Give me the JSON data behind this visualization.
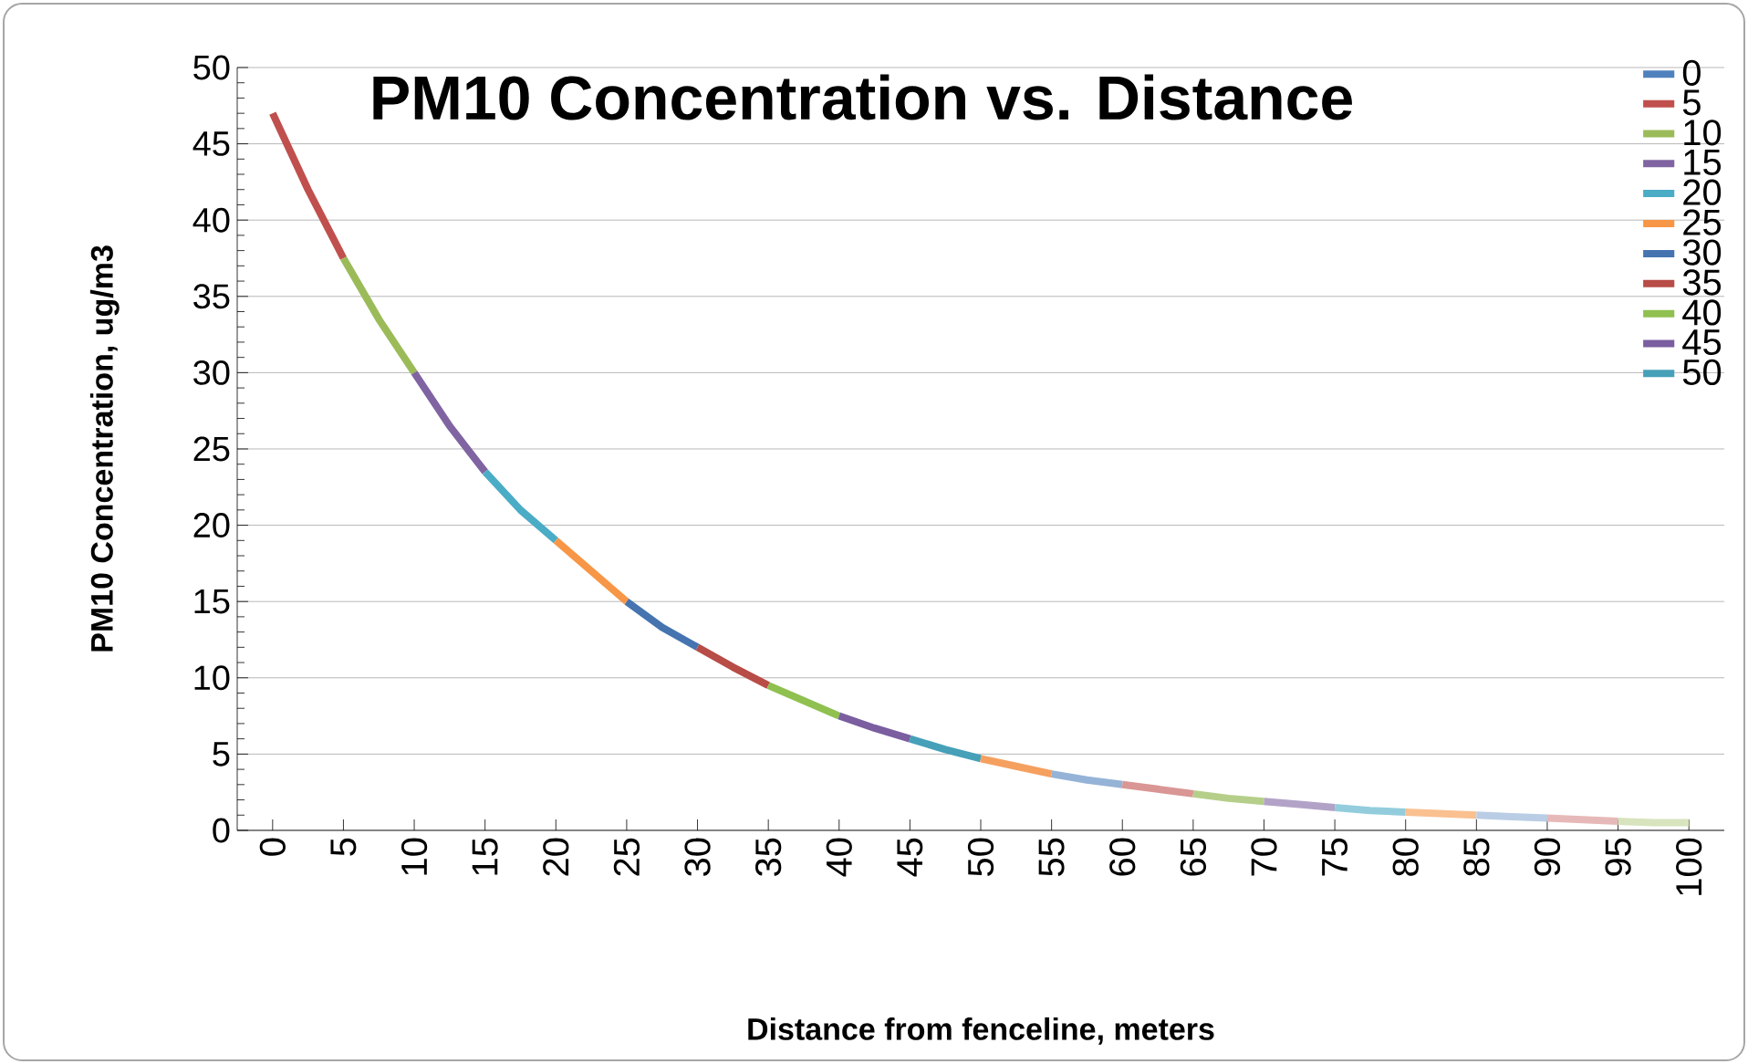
{
  "chart_data": {
    "type": "line",
    "title": "PM10 Concentration vs. Distance",
    "xlabel": "Distance from fenceline, meters",
    "ylabel": "PM10 Concentration, ug/m3",
    "xlim": [
      -2.5,
      102.5
    ],
    "xticks": [
      0,
      5,
      10,
      15,
      20,
      25,
      30,
      35,
      40,
      45,
      50,
      55,
      60,
      65,
      70,
      75,
      80,
      85,
      90,
      95,
      100
    ],
    "ylim": [
      0,
      50
    ],
    "yticks": [
      0,
      5,
      10,
      15,
      20,
      25,
      30,
      35,
      40,
      45,
      50
    ],
    "grid": "y",
    "legend": "top right",
    "marker": "none",
    "line_style": "solid",
    "series": [
      {
        "name": "0",
        "color": "#4f81bd"
      },
      {
        "name": "5",
        "color": "#c0504d",
        "x": [
          0,
          2.5,
          5
        ],
        "values": [
          47,
          42,
          37.5
        ]
      },
      {
        "name": "10",
        "color": "#9bbb59",
        "x": [
          5,
          7.5,
          10
        ],
        "values": [
          37.5,
          33.5,
          30
        ]
      },
      {
        "name": "15",
        "color": "#8064a2",
        "x": [
          10,
          12.5,
          15
        ],
        "values": [
          30,
          26.5,
          23.5
        ]
      },
      {
        "name": "20",
        "color": "#4bacc6",
        "x": [
          15,
          17.5,
          20
        ],
        "values": [
          23.5,
          21,
          19
        ]
      },
      {
        "name": "25",
        "color": "#f79646",
        "x": [
          20,
          22.5,
          25
        ],
        "values": [
          19,
          17,
          15
        ]
      },
      {
        "name": "30",
        "color": "#4674b0",
        "x": [
          25,
          27.5,
          30
        ],
        "values": [
          15,
          13.3,
          12
        ]
      },
      {
        "name": "35",
        "color": "#b84c47",
        "x": [
          30,
          32.5,
          35
        ],
        "values": [
          12,
          10.7,
          9.5
        ]
      },
      {
        "name": "40",
        "color": "#8fc050",
        "x": [
          35,
          37.5,
          40
        ],
        "values": [
          9.5,
          8.5,
          7.5
        ]
      },
      {
        "name": "45",
        "color": "#7a5ea0",
        "x": [
          40,
          42.5,
          45
        ],
        "values": [
          7.5,
          6.7,
          6
        ]
      },
      {
        "name": "50",
        "color": "#45a0b8",
        "x": [
          45,
          47.5,
          50
        ],
        "values": [
          6,
          5.3,
          4.7
        ]
      },
      {
        "color": "#f5a05f",
        "x": [
          50,
          52.5,
          55
        ],
        "values": [
          4.7,
          4.2,
          3.7
        ]
      },
      {
        "color": "#95b3d7",
        "x": [
          55,
          57.5,
          60
        ],
        "values": [
          3.7,
          3.3,
          3
        ]
      },
      {
        "color": "#d99694",
        "x": [
          60,
          62.5,
          65
        ],
        "values": [
          3,
          2.7,
          2.4
        ]
      },
      {
        "color": "#b5cf8a",
        "x": [
          65,
          67.5,
          70
        ],
        "values": [
          2.4,
          2.1,
          1.9
        ]
      },
      {
        "color": "#b3a2c7",
        "x": [
          70,
          72.5,
          75
        ],
        "values": [
          1.9,
          1.7,
          1.5
        ]
      },
      {
        "color": "#93cddd",
        "x": [
          75,
          77.5,
          80
        ],
        "values": [
          1.5,
          1.3,
          1.2
        ]
      },
      {
        "color": "#fac090",
        "x": [
          80,
          82.5,
          85
        ],
        "values": [
          1.2,
          1.1,
          1
        ]
      },
      {
        "color": "#b9cde5",
        "x": [
          85,
          87.5,
          90
        ],
        "values": [
          1,
          0.9,
          0.8
        ]
      },
      {
        "color": "#e6b9b8",
        "x": [
          90,
          92.5,
          95
        ],
        "values": [
          0.8,
          0.7,
          0.6
        ]
      },
      {
        "color": "#d7e4bd",
        "x": [
          95,
          97.5,
          100
        ],
        "values": [
          0.6,
          0.5,
          0.5
        ]
      }
    ]
  }
}
